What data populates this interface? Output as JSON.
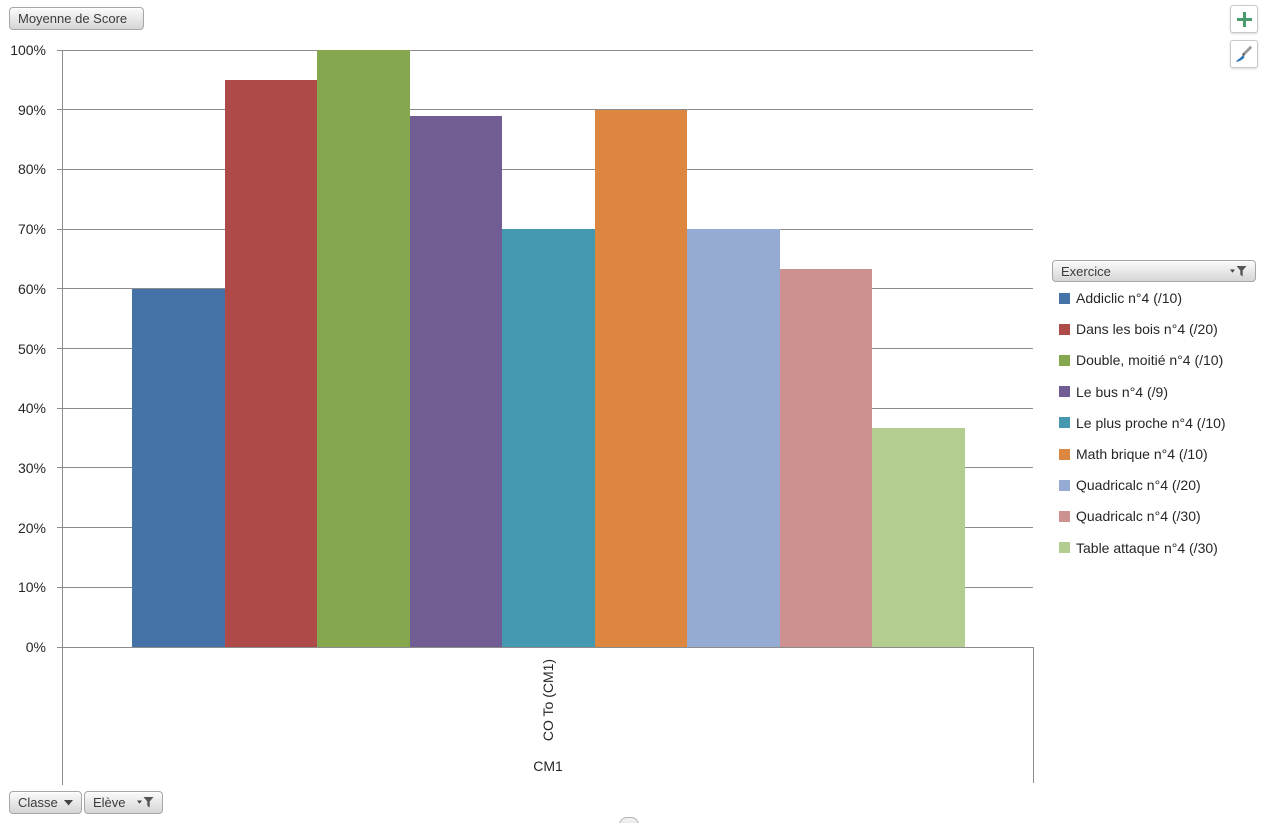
{
  "chart_data": {
    "type": "bar",
    "value_field_label": "Moyenne de Score",
    "categories": [
      "CO To (CM1)"
    ],
    "category_group_label": "CM1",
    "ylim": [
      0,
      100
    ],
    "ytick_labels": [
      "0%",
      "10%",
      "20%",
      "30%",
      "40%",
      "50%",
      "60%",
      "70%",
      "80%",
      "90%",
      "100%"
    ],
    "grid": true,
    "legend_position": "right",
    "legend_title": "Exercice",
    "series": [
      {
        "name": "Addiclic n°4 (/10)",
        "value": 60,
        "color": "#4573A7"
      },
      {
        "name": "Dans les bois n°4 (/20)",
        "value": 95,
        "color": "#AE4A47"
      },
      {
        "name": "Double, moitié n°4 (/10)",
        "value": 100,
        "color": "#85A84F"
      },
      {
        "name": "Le bus n°4 (/9)",
        "value": 88.9,
        "color": "#715C94"
      },
      {
        "name": "Le plus proche n°4 (/10)",
        "value": 70,
        "color": "#4499B0"
      },
      {
        "name": "Math brique n°4 (/10)",
        "value": 90,
        "color": "#DD8640"
      },
      {
        "name": "Quadricalc n°4 (/20)",
        "value": 70,
        "color": "#95ABD3"
      },
      {
        "name": "Quadricalc n°4 (/30)",
        "value": 63.3,
        "color": "#CD918F"
      },
      {
        "name": "Table attaque n°4 (/30)",
        "value": 36.7,
        "color": "#B3CC90"
      }
    ]
  },
  "pivot_buttons": {
    "value_button": {
      "label": "Moyenne de Score"
    },
    "legend_button": {
      "label": "Exercice",
      "icon": "filter-funnel-icon"
    },
    "axis_buttons": [
      {
        "label": "Classe",
        "icon": "chevron-down-icon"
      },
      {
        "label": "Elève",
        "icon": "filter-funnel-icon"
      }
    ]
  },
  "chart_tools": {
    "add_element_button": {
      "icon": "plus-icon",
      "color": "#4A9B6C"
    },
    "styles_button": {
      "icon": "paintbrush-icon",
      "brush_color": "#2E74B5"
    }
  },
  "colors": {
    "gridline": "#8c8c8c",
    "axis_text": "#262626"
  }
}
